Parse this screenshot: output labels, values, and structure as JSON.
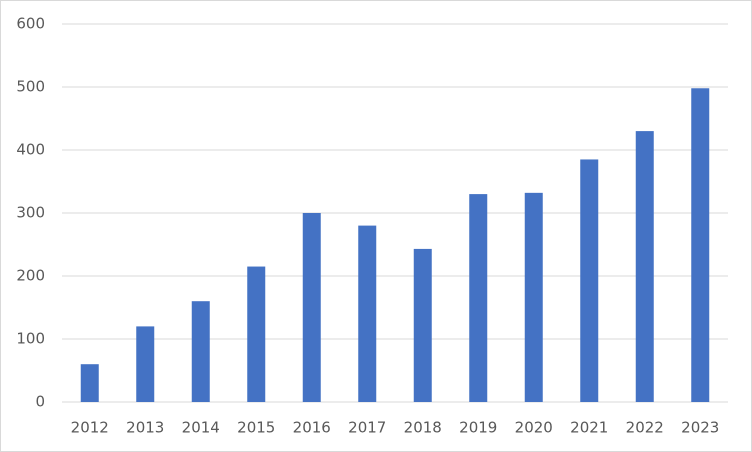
{
  "chart_data": {
    "type": "bar",
    "categories": [
      "2012",
      "2013",
      "2014",
      "2015",
      "2016",
      "2017",
      "2018",
      "2019",
      "2020",
      "2021",
      "2022",
      "2023"
    ],
    "values": [
      60,
      120,
      160,
      215,
      300,
      280,
      243,
      330,
      332,
      385,
      430,
      498
    ],
    "color": "#4472c4",
    "ylim": [
      0,
      600
    ],
    "yticks": [
      0,
      100,
      200,
      300,
      400,
      500,
      600
    ],
    "grid": true
  }
}
